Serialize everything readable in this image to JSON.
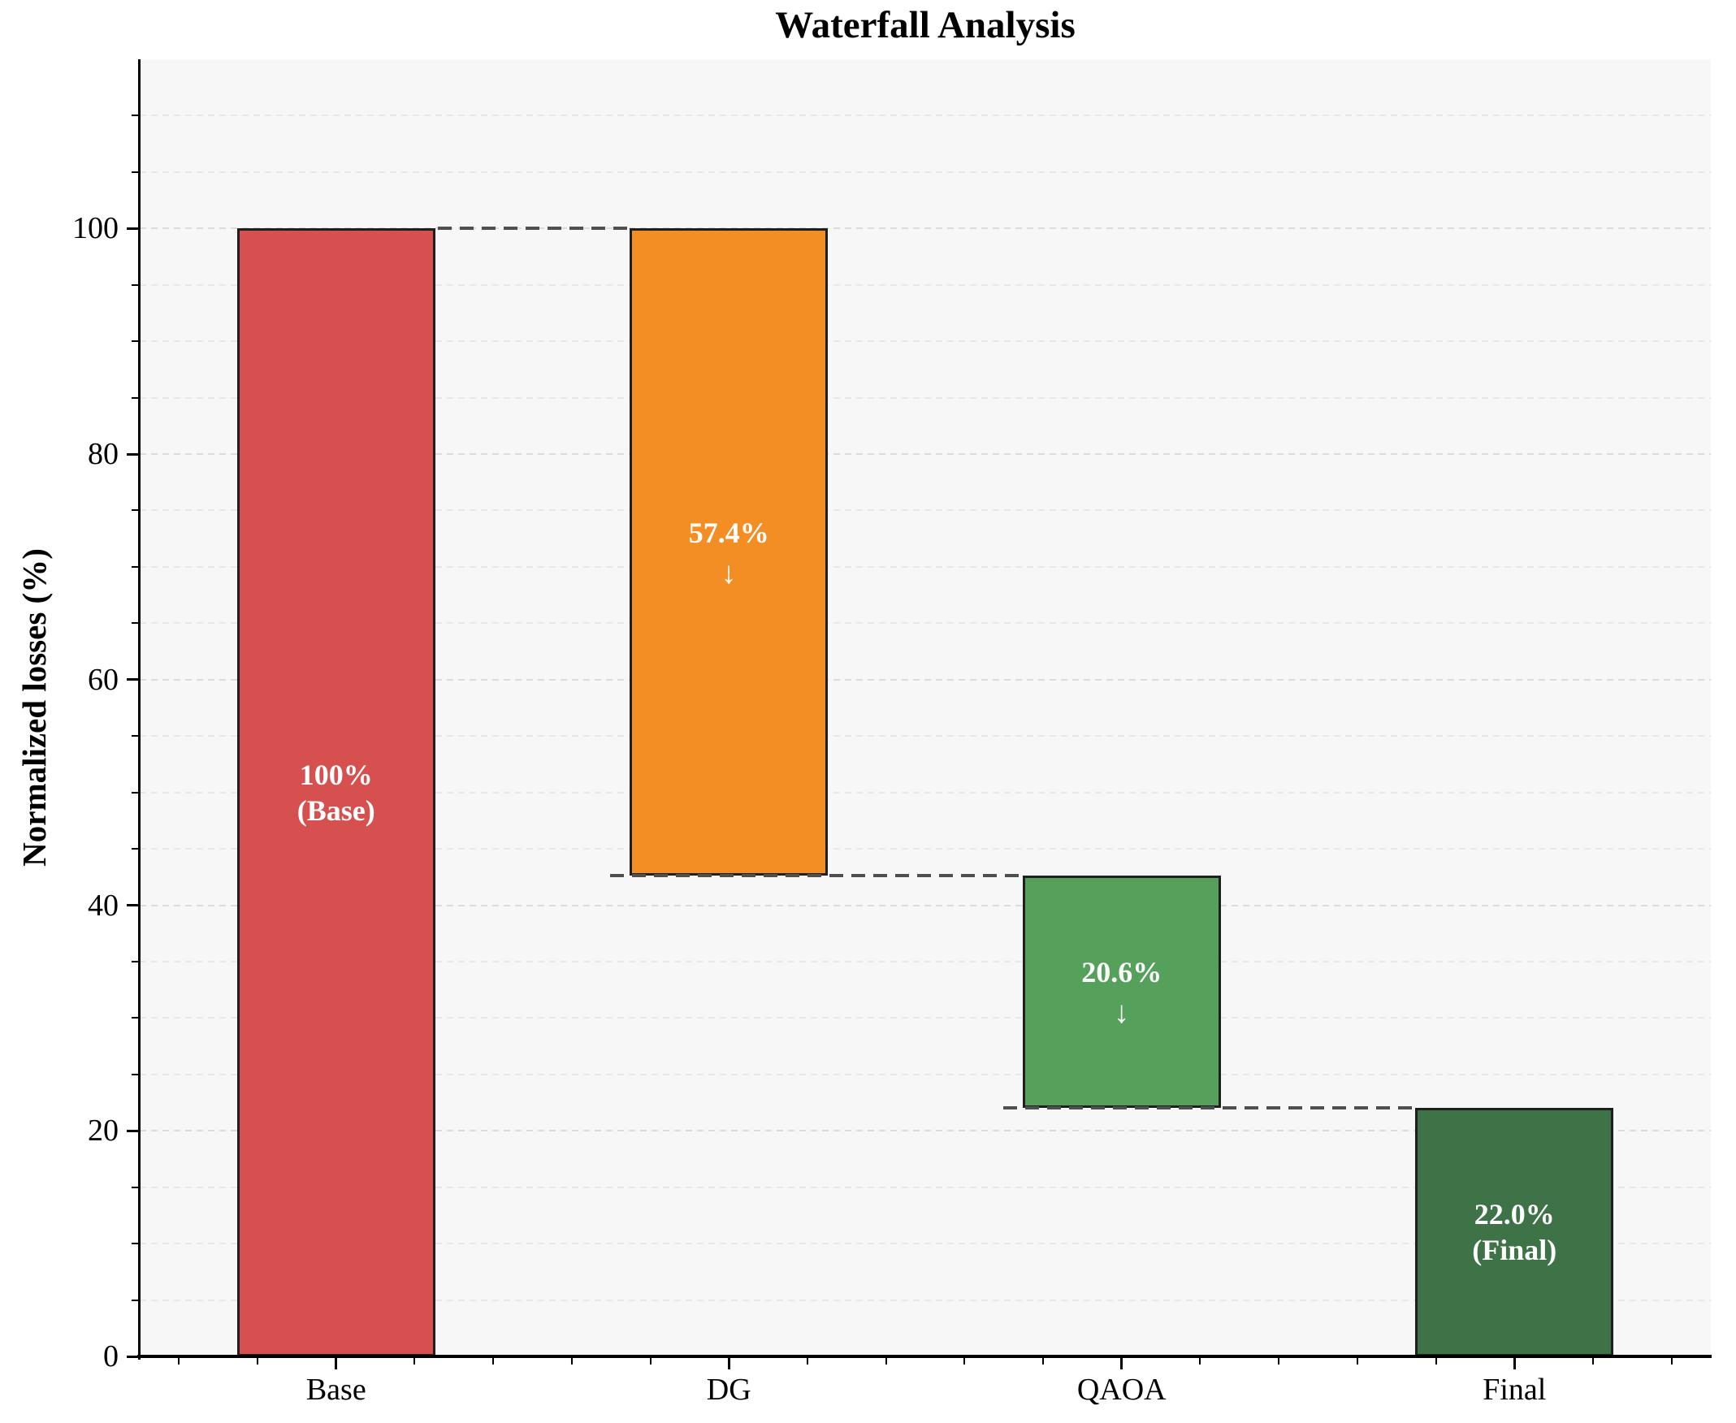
{
  "title": "Waterfall Analysis",
  "axes": {
    "ylabel": "Normalized losses (%)",
    "ytick_labels": [
      "0",
      "20",
      "40",
      "60",
      "80",
      "100"
    ],
    "ytick_values": [
      0,
      20,
      40,
      60,
      80,
      100
    ],
    "y_minor_step": 5,
    "y_minor_max": 110,
    "xtick_labels": [
      "Base",
      "DG",
      "QAOA",
      "Final"
    ]
  },
  "icons": {
    "down_arrow": "↓"
  },
  "colors": {
    "figure_bg": "#ffffff",
    "plot_bg": "#f7f7f7",
    "axis": "#000000",
    "grid_major": "#dcdcdc",
    "grid_minor": "#e8e8e8",
    "connector": "#4f4f4f",
    "bar_edge": "#1f1f1f",
    "bar_label_text": "#ffffff"
  },
  "chart_data": {
    "type": "bar",
    "subtype": "waterfall",
    "title": "Waterfall Analysis",
    "ylabel": "Normalized losses (%)",
    "ylim": [
      0,
      115
    ],
    "grid": "horizontal dashed lines every 5 units, no vertical grid",
    "legend": "none",
    "categories": [
      "Base",
      "DG",
      "QAOA",
      "Final"
    ],
    "bars": [
      {
        "name": "Base",
        "start": 0,
        "end": 100,
        "value": 100.0,
        "kind": "total",
        "label_lines": [
          "100%",
          "(Base)"
        ],
        "show_arrow": false,
        "color": "#d5504f"
      },
      {
        "name": "DG",
        "start": 100,
        "end": 42.6,
        "value": -57.4,
        "kind": "decrease",
        "label_lines": [
          "57.4%"
        ],
        "show_arrow": true,
        "color": "#f28e24"
      },
      {
        "name": "QAOA",
        "start": 42.6,
        "end": 22.0,
        "value": -20.6,
        "kind": "decrease",
        "label_lines": [
          "20.6%"
        ],
        "show_arrow": true,
        "color": "#55a05a"
      },
      {
        "name": "Final",
        "start": 0,
        "end": 22.0,
        "value": 22.0,
        "kind": "total",
        "label_lines": [
          "22.0%",
          "(Final)"
        ],
        "show_arrow": false,
        "color": "#3d7346"
      }
    ],
    "connectors": [
      {
        "level": 100.0,
        "from_bar": 0,
        "from_edge": "right",
        "to_bar": 1
      },
      {
        "level": 42.6,
        "from_bar": 1,
        "from_edge": "left",
        "to_bar": 2
      },
      {
        "level": 22.0,
        "from_bar": 2,
        "from_edge": "left",
        "to_bar": 3
      }
    ]
  }
}
